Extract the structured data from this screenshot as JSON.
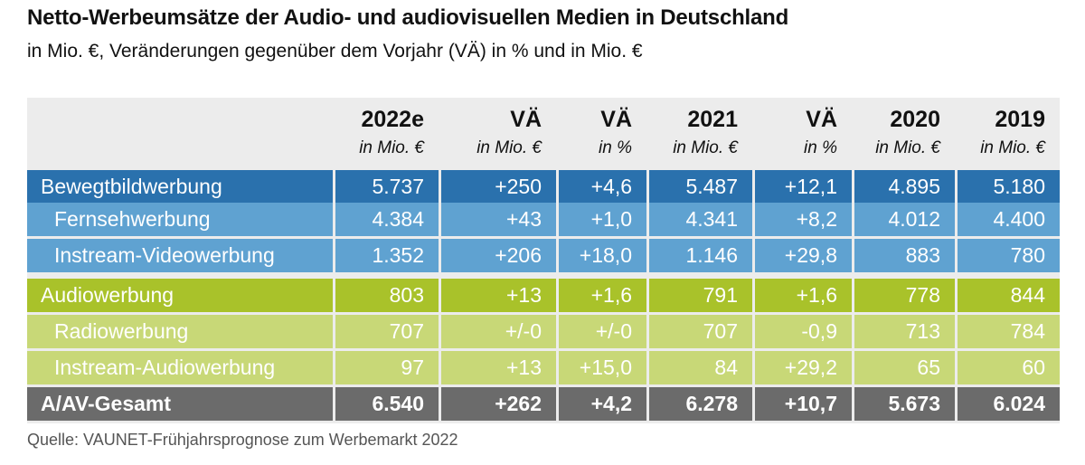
{
  "title": "Netto-Werbeumsätze der Audio- und audiovisuellen Medien in Deutschland",
  "subtitle": "in Mio. €, Veränderungen gegenüber dem Vorjahr (VÄ) in % und in Mio. €",
  "source": "Quelle: VAUNET-Frühjahrsprognose zum Werbemarkt 2022",
  "columns": [
    {
      "header": "2022e",
      "unit": "in Mio. €"
    },
    {
      "header": "VÄ",
      "unit": "in Mio. €"
    },
    {
      "header": "VÄ",
      "unit": "in %"
    },
    {
      "header": "2021",
      "unit": "in Mio. €"
    },
    {
      "header": "VÄ",
      "unit": "in %"
    },
    {
      "header": "2020",
      "unit": "in Mio. €"
    },
    {
      "header": "2019",
      "unit": "in Mio. €"
    }
  ],
  "rows": [
    {
      "label": "Bewegtbildwerbung",
      "values": [
        "5.737",
        "+250",
        "+4,6",
        "5.487",
        "+12,1",
        "4.895",
        "5.180"
      ]
    },
    {
      "label": "Fernsehwerbung",
      "values": [
        "4.384",
        "+43",
        "+1,0",
        "4.341",
        "+8,2",
        "4.012",
        "4.400"
      ]
    },
    {
      "label": "Instream-Videowerbung",
      "values": [
        "1.352",
        "+206",
        "+18,0",
        "1.146",
        "+29,8",
        "883",
        "780"
      ]
    },
    {
      "label": "Audiowerbung",
      "values": [
        "803",
        "+13",
        "+1,6",
        "791",
        "+1,6",
        "778",
        "844"
      ]
    },
    {
      "label": "Radiowerbung",
      "values": [
        "707",
        "+/-0",
        "+/-0",
        "707",
        "-0,9",
        "713",
        "784"
      ]
    },
    {
      "label": "Instream-Audiowerbung",
      "values": [
        "97",
        "+13",
        "+15,0",
        "84",
        "+29,2",
        "65",
        "60"
      ]
    },
    {
      "label": "A/AV-Gesamt",
      "values": [
        "6.540",
        "+262",
        "+4,2",
        "6.278",
        "+10,7",
        "5.673",
        "6.024"
      ]
    }
  ],
  "colors": {
    "bewegtbild": "#2a71ad",
    "bewegtbild_sub": "#5fa2d1",
    "audio": "#a9c22a",
    "audio_sub": "#c8d877",
    "gesamt": "#6b6b6b"
  }
}
